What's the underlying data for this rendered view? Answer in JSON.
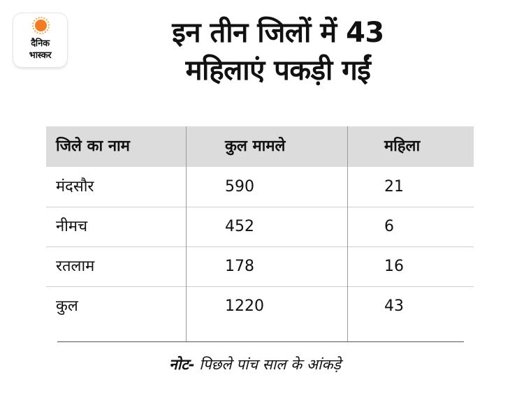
{
  "logo": {
    "line1": "दैनिक",
    "line2": "भास्कर"
  },
  "title": {
    "line1": "इन तीन जिलों में 43",
    "line2": "महिलाएं पकड़ी गईं"
  },
  "table": {
    "headers": [
      "जिले का नाम",
      "कुल मामले",
      "महिला"
    ],
    "rows": [
      [
        "मंदसौर",
        "590",
        "21"
      ],
      [
        "नीमच",
        "452",
        "6"
      ],
      [
        "रतलाम",
        "178",
        "16"
      ],
      [
        "कुल",
        "1220",
        "43"
      ]
    ]
  },
  "note": {
    "label": "नोट-",
    "text": " पिछले पांच साल के आंकड़े"
  }
}
